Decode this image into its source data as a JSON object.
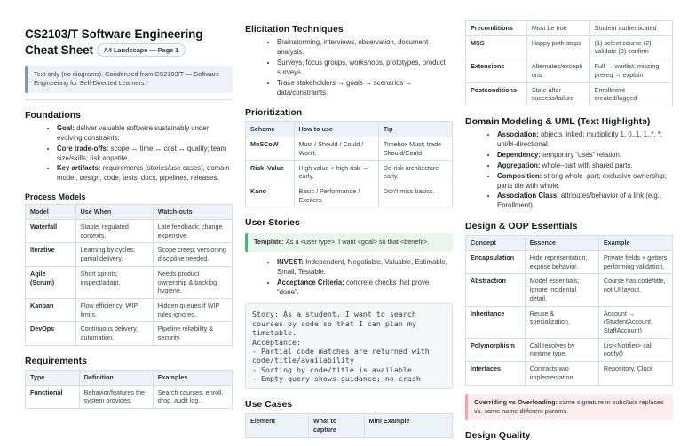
{
  "page": {
    "title": "CS2103/T Software Engineering Cheat Sheet",
    "badge": "A4 Landscape — Page 1",
    "intro": "Text-only (no diagrams). Condensed from CS2103/T — Software Engineering for Self-Directed Learners."
  },
  "foundations": {
    "heading": "Foundations",
    "bullets": [
      {
        "lead": "Goal:",
        "rest": "deliver valuable software sustainably under evolving constraints."
      },
      {
        "lead": "Core trade-offs:",
        "rest": "scope ↔ time ↔ cost ↔ quality; team size/skills; risk appetite."
      },
      {
        "lead": "Key artifacts:",
        "rest": "requirements (stories/use cases), domain model, design, code, tests, docs, pipelines, releases."
      }
    ]
  },
  "process_models": {
    "heading": "Process Models",
    "table": {
      "headers": [
        "Model",
        "Use When",
        "Watch-outs"
      ],
      "rows": [
        [
          "Waterfall",
          "Stable, regulated contexts.",
          "Late feedback; change expensive."
        ],
        [
          "Iterative",
          "Learning by cycles; partial delivery.",
          "Scope creep; versioning discipline needed."
        ],
        [
          "Agile (Scrum)",
          "Short sprints; inspect/adapt.",
          "Needs product ownership & backlog hygiene."
        ],
        [
          "Kanban",
          "Flow efficiency; WIP limits.",
          "Hidden queues if WIP rules ignored."
        ],
        [
          "DevOps",
          "Continuous delivery, automation.",
          "Pipeline reliability & security."
        ]
      ]
    }
  },
  "requirements": {
    "heading": "Requirements",
    "table": {
      "headers": [
        "Type",
        "Definition",
        "Examples"
      ],
      "rows": [
        [
          "Functional",
          "Behavior/features the system provides.",
          "Search courses, enroll, drop, audit log."
        ]
      ]
    }
  },
  "elicitation": {
    "heading": "Elicitation Techniques",
    "bullets": [
      "Brainstorming, interviews, observation, document analysis.",
      "Surveys, focus groups, workshops, prototypes, product surveys.",
      "Trace stakeholders → goals → scenarios → data/constraints."
    ]
  },
  "prioritization": {
    "heading": "Prioritization",
    "table": {
      "headers": [
        "Scheme",
        "How to use",
        "Tip"
      ],
      "rows": [
        [
          "MoSCoW",
          "Must / Should / Could / Won't.",
          "Timebox Must; trade Should/Could."
        ],
        [
          "Risk–Value",
          "High value + high risk → early.",
          "De-risk architecture early."
        ],
        [
          "Kano",
          "Basic / Performance / Exciters.",
          "Don't miss basics."
        ]
      ]
    }
  },
  "user_stories": {
    "heading": "User Stories",
    "template_callout": {
      "lead": "Template:",
      "rest": "As a <user type>, I want <goal> so that <benefit>."
    },
    "bullets": [
      {
        "lead": "INVEST:",
        "rest": "Independent, Negotiable, Valuable, Estimable, Small, Testable."
      },
      {
        "lead": "Acceptance Criteria:",
        "rest": "concrete checks that prove “done”."
      }
    ],
    "story_code": "Story: As a student, I want to search courses by code so that I can plan my timetable.\nAcceptance:\n- Partial code matches are returned with code/title/availability\n- Sorting by code/title is available\n- Empty query shows guidance; no crash"
  },
  "use_cases": {
    "heading": "Use Cases",
    "table": {
      "headers": [
        "Element",
        "What to capture",
        "Mini Example"
      ],
      "rows": []
    },
    "table_continued": {
      "rows": [
        [
          "Preconditions",
          "Must be true",
          "Student authenticated"
        ],
        [
          "MSS",
          "Happy path steps",
          "(1) select course (2) validate (3) confirm"
        ],
        [
          "Extensions",
          "Alternates/exceptions",
          "Full → waitlist; missing prereq → explain"
        ],
        [
          "Postconditions",
          "State after success/failure",
          "Enrollment created/logged"
        ]
      ]
    }
  },
  "domain_modeling": {
    "heading": "Domain Modeling & UML (Text Highlights)",
    "bullets": [
      {
        "lead": "Association:",
        "rest": "objects linked; multiplicity 1, 0..1, 1..*, *; uni/bi-directional."
      },
      {
        "lead": "Dependency:",
        "rest": "temporary “uses” relation."
      },
      {
        "lead": "Aggregation:",
        "rest": "whole–part with shared parts."
      },
      {
        "lead": "Composition:",
        "rest": "strong whole–part; exclusive ownership; parts die with whole."
      },
      {
        "lead": "Association Class:",
        "rest": "attributes/behavior of a link (e.g., Enrollment)."
      }
    ]
  },
  "oop": {
    "heading": "Design & OOP Essentials",
    "table": {
      "headers": [
        "Concept",
        "Essence",
        "Example"
      ],
      "rows": [
        [
          "Encapsulation",
          "Hide representation; expose behavior.",
          "Private fields + getters performing validation."
        ],
        [
          "Abstraction",
          "Model essentials; ignore incidental detail.",
          "Course has code/title, not UI layout."
        ],
        [
          "Inheritance",
          "Reuse & specialization.",
          "Account → (StudentAccount, StaffAccount)"
        ],
        [
          "Polymorphism",
          "Call resolves by runtime type.",
          "List<Notifier> call notify()"
        ],
        [
          "Interfaces",
          "Contracts w/o implementation.",
          "Repository, Clock"
        ]
      ]
    },
    "callout": {
      "lead": "Overriding vs Overloading:",
      "rest": "same signature in subclass replaces vs. same name different params."
    }
  },
  "design_quality": {
    "heading": "Design Quality"
  }
}
